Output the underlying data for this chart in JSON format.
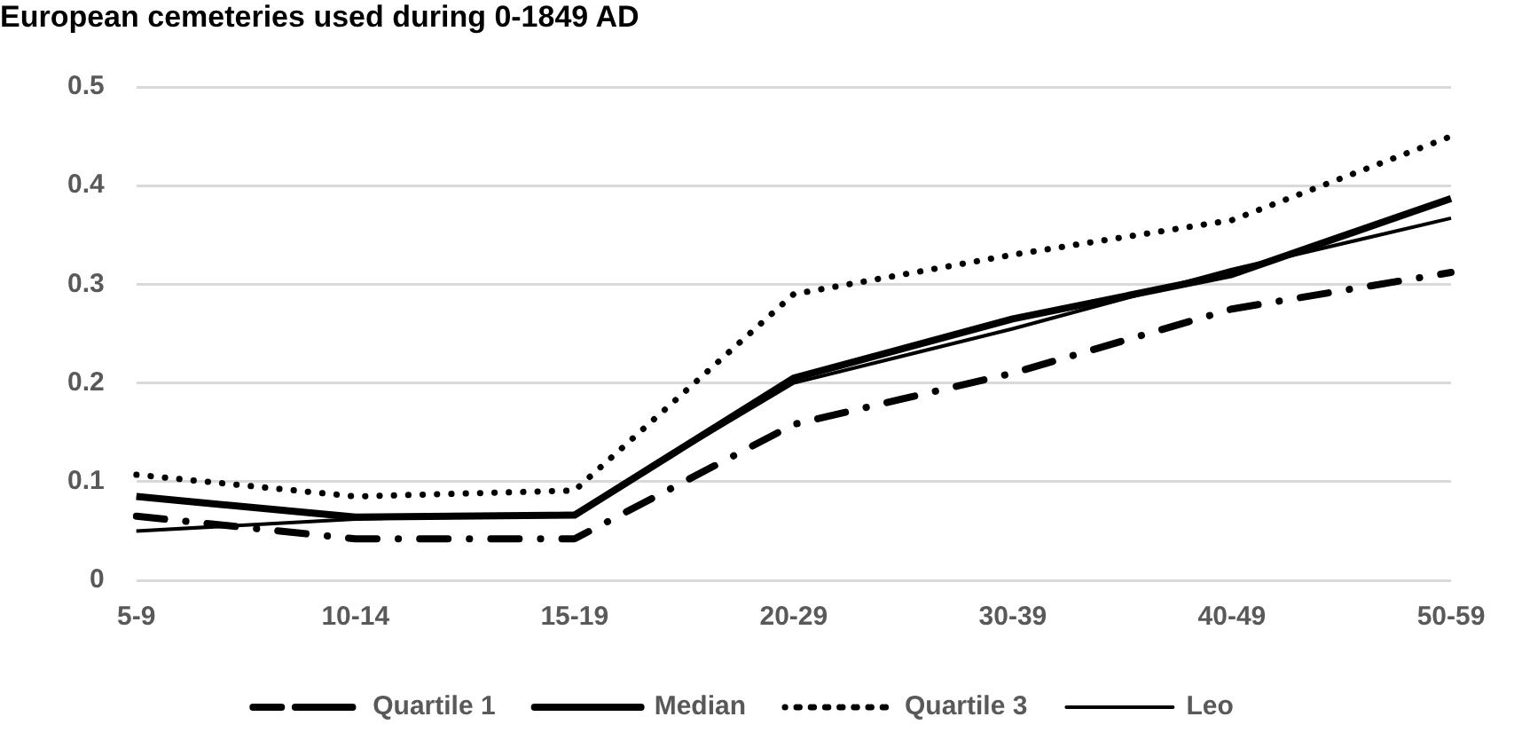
{
  "chart_data": {
    "type": "line",
    "title": "European cemeteries used during 0-1849 AD",
    "categories": [
      "5-9",
      "10-14",
      "15-19",
      "20-29",
      "30-39",
      "40-49",
      "50-59"
    ],
    "series": [
      {
        "name": "Quartile 1",
        "color": "#000000",
        "line_style": "dashdot",
        "values": [
          0.065,
          0.042,
          0.042,
          0.158,
          0.21,
          0.275,
          0.312
        ]
      },
      {
        "name": "Median",
        "color": "#000000",
        "line_style": "solid",
        "values": [
          0.085,
          0.064,
          0.066,
          0.205,
          0.265,
          0.31,
          0.387
        ]
      },
      {
        "name": "Quartile 3",
        "color": "#000000",
        "line_style": "dotted",
        "values": [
          0.107,
          0.085,
          0.091,
          0.29,
          0.33,
          0.365,
          0.45
        ]
      },
      {
        "name": "Leo",
        "color": "#000000",
        "line_style": "solid",
        "values": [
          0.05,
          0.062,
          0.068,
          0.2,
          0.255,
          0.315,
          0.367
        ]
      }
    ],
    "ylim": [
      0,
      0.5
    ],
    "yticks": [
      0,
      0.1,
      0.2,
      0.3,
      0.4,
      0.5
    ],
    "grid": "y",
    "legend": "bottom",
    "marker": "none"
  }
}
